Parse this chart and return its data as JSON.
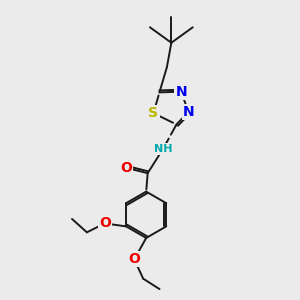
{
  "bg_color": "#ebebeb",
  "bond_color": "#1a1a1a",
  "bond_width": 1.4,
  "dbo": 0.07,
  "atoms": {
    "S": {
      "color": "#b8b800",
      "fontsize": 10
    },
    "N": {
      "color": "#0000ee",
      "fontsize": 10
    },
    "O": {
      "color": "#ee0000",
      "fontsize": 10
    },
    "NH": {
      "color": "#00aaaa",
      "fontsize": 9
    }
  }
}
